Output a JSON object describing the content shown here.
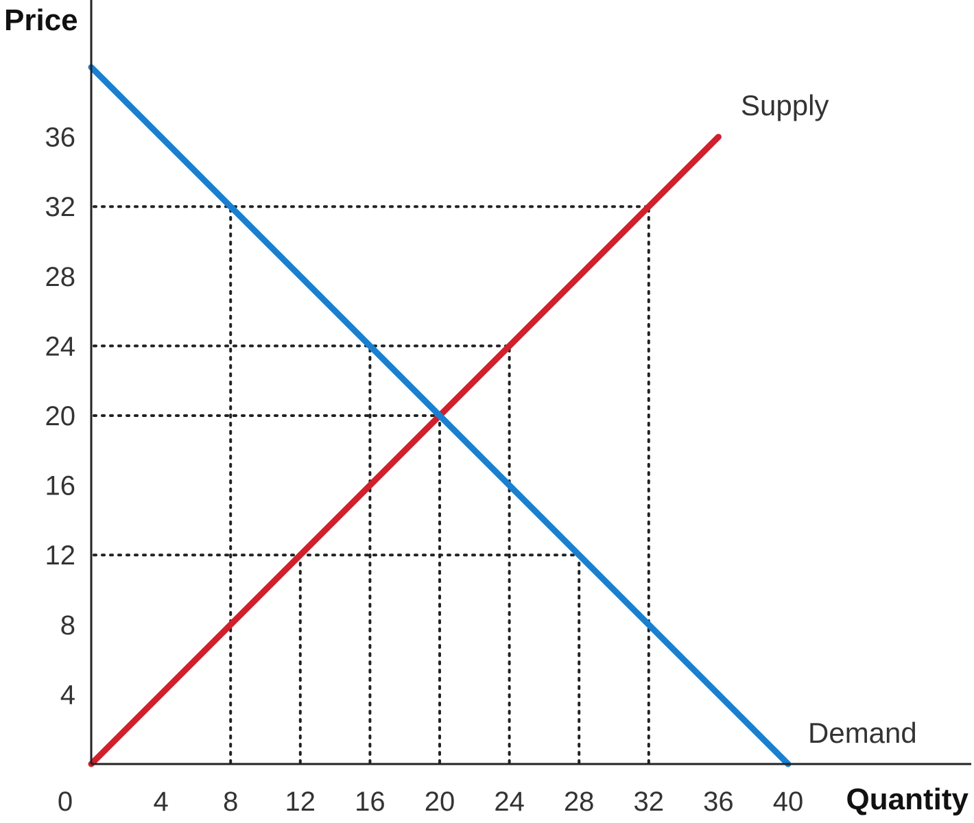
{
  "chart_data": {
    "type": "line",
    "xlabel": "Quantity",
    "ylabel": "Price",
    "xlim": [
      0,
      40
    ],
    "ylim": [
      0,
      40
    ],
    "x_ticks": [
      "0",
      "4",
      "8",
      "12",
      "16",
      "20",
      "24",
      "28",
      "32",
      "36",
      "40"
    ],
    "y_ticks": [
      "4",
      "8",
      "12",
      "16",
      "20",
      "24",
      "28",
      "32",
      "36"
    ],
    "series": [
      {
        "name": "Supply",
        "color": "#d0202e",
        "points": [
          [
            0,
            0
          ],
          [
            36,
            36
          ]
        ]
      },
      {
        "name": "Demand",
        "color": "#1a7fd0",
        "points": [
          [
            0,
            40
          ],
          [
            40,
            0
          ]
        ]
      }
    ],
    "guides": {
      "horizontal": [
        {
          "y": 32,
          "x_to": 32
        },
        {
          "y": 24,
          "x_to": 24
        },
        {
          "y": 20,
          "x_to": 20
        },
        {
          "y": 12,
          "x_to": 28
        }
      ],
      "vertical": [
        {
          "x": 8,
          "y_to": 32
        },
        {
          "x": 12,
          "y_to": 12
        },
        {
          "x": 16,
          "y_to": 24
        },
        {
          "x": 20,
          "y_to": 20
        },
        {
          "x": 24,
          "y_to": 24
        },
        {
          "x": 28,
          "y_to": 12
        },
        {
          "x": 32,
          "y_to": 32
        }
      ]
    }
  }
}
